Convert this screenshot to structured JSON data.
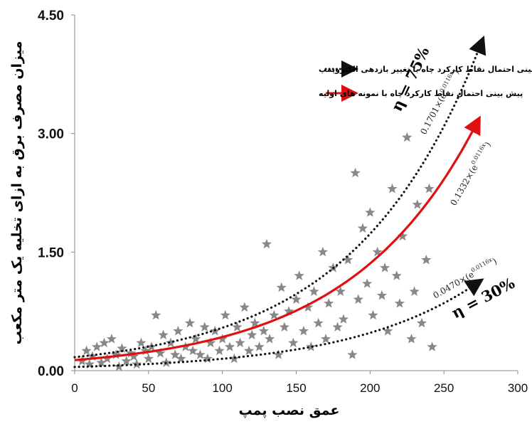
{
  "chart_data": {
    "type": "scatter",
    "xlabel": "عمق نصب پمپ",
    "ylabel": "میزان مصرف برق به ازای تخلیه یک متر مکعب",
    "xlim": [
      0,
      300
    ],
    "ylim": [
      0,
      4.5
    ],
    "x_ticks": [
      "0",
      "50",
      "100",
      "150",
      "200",
      "250",
      "300"
    ],
    "y_ticks": [
      "0.00",
      "1.50",
      "3.00",
      "4.50"
    ],
    "legend": [
      {
        "label": "پیش بینی احتمال نقاط کارکرد چاه با تغییر بازدهی الکتروپمپ",
        "style": "dotted",
        "color": "#111111"
      },
      {
        "label": "پیش بینی احتمال نقاط کارکرد چاه با نمونه های اولیه",
        "style": "solid",
        "color": "#e01010"
      }
    ],
    "curves": [
      {
        "name": "η = 75%",
        "equation_coef": "0.1701×",
        "equation_exp": "e^0.0116x",
        "coef": 0.1701,
        "rate": 0.0116,
        "x_range": [
          0,
          275
        ],
        "style": "dotted",
        "color": "#111111"
      },
      {
        "name": "",
        "equation_coef": "0.1332×",
        "equation_exp": "e^0.0116x",
        "coef": 0.1332,
        "rate": 0.0116,
        "x_range": [
          0,
          272
        ],
        "style": "solid",
        "color": "#e01010"
      },
      {
        "name": "η = 30%",
        "equation_coef": "0.0470×",
        "equation_exp": "e^0.0116x",
        "coef": 0.047,
        "rate": 0.0116,
        "x_range": [
          0,
          272
        ],
        "style": "dotted",
        "color": "#111111"
      }
    ],
    "series": [
      {
        "marker": "star",
        "color": "#888888",
        "points": [
          [
            5,
            0.12
          ],
          [
            8,
            0.25
          ],
          [
            10,
            0.08
          ],
          [
            12,
            0.18
          ],
          [
            15,
            0.3
          ],
          [
            18,
            0.1
          ],
          [
            20,
            0.35
          ],
          [
            22,
            0.15
          ],
          [
            25,
            0.4
          ],
          [
            28,
            0.2
          ],
          [
            30,
            0.05
          ],
          [
            32,
            0.28
          ],
          [
            35,
            0.12
          ],
          [
            38,
            0.22
          ],
          [
            40,
            0.18
          ],
          [
            42,
            0.08
          ],
          [
            45,
            0.35
          ],
          [
            48,
            0.25
          ],
          [
            50,
            0.15
          ],
          [
            52,
            0.3
          ],
          [
            55,
            0.7
          ],
          [
            58,
            0.22
          ],
          [
            60,
            0.45
          ],
          [
            62,
            0.1
          ],
          [
            65,
            0.35
          ],
          [
            68,
            0.2
          ],
          [
            70,
            0.5
          ],
          [
            72,
            0.15
          ],
          [
            75,
            0.3
          ],
          [
            78,
            0.6
          ],
          [
            80,
            0.25
          ],
          [
            82,
            0.4
          ],
          [
            85,
            0.2
          ],
          [
            88,
            0.55
          ],
          [
            90,
            0.15
          ],
          [
            92,
            0.35
          ],
          [
            95,
            0.5
          ],
          [
            98,
            0.25
          ],
          [
            100,
            0.4
          ],
          [
            102,
            0.7
          ],
          [
            105,
            0.3
          ],
          [
            108,
            0.15
          ],
          [
            110,
            0.55
          ],
          [
            112,
            0.35
          ],
          [
            115,
            0.8
          ],
          [
            118,
            0.25
          ],
          [
            120,
            0.45
          ],
          [
            122,
            0.6
          ],
          [
            125,
            0.3
          ],
          [
            128,
            0.5
          ],
          [
            130,
            1.6
          ],
          [
            132,
            0.4
          ],
          [
            135,
            0.7
          ],
          [
            138,
            0.2
          ],
          [
            140,
            1.05
          ],
          [
            142,
            0.55
          ],
          [
            145,
            0.75
          ],
          [
            148,
            0.35
          ],
          [
            150,
            0.9
          ],
          [
            152,
            1.2
          ],
          [
            155,
            0.5
          ],
          [
            158,
            0.8
          ],
          [
            160,
            0.3
          ],
          [
            162,
            1.0
          ],
          [
            165,
            0.6
          ],
          [
            168,
            1.5
          ],
          [
            170,
            0.4
          ],
          [
            172,
            0.85
          ],
          [
            175,
            1.3
          ],
          [
            178,
            0.55
          ],
          [
            180,
            1.0
          ],
          [
            182,
            0.65
          ],
          [
            185,
            1.4
          ],
          [
            188,
            0.2
          ],
          [
            190,
            2.5
          ],
          [
            192,
            0.9
          ],
          [
            195,
            1.8
          ],
          [
            198,
            1.1
          ],
          [
            200,
            2.0
          ],
          [
            202,
            0.7
          ],
          [
            205,
            1.5
          ],
          [
            208,
            0.95
          ],
          [
            210,
            1.3
          ],
          [
            212,
            0.5
          ],
          [
            215,
            2.3
          ],
          [
            218,
            1.2
          ],
          [
            220,
            0.85
          ],
          [
            222,
            1.7
          ],
          [
            225,
            2.95
          ],
          [
            228,
            0.4
          ],
          [
            230,
            1.0
          ],
          [
            232,
            2.1
          ],
          [
            235,
            0.6
          ],
          [
            238,
            1.4
          ],
          [
            240,
            2.3
          ],
          [
            242,
            0.3
          ]
        ]
      }
    ]
  }
}
